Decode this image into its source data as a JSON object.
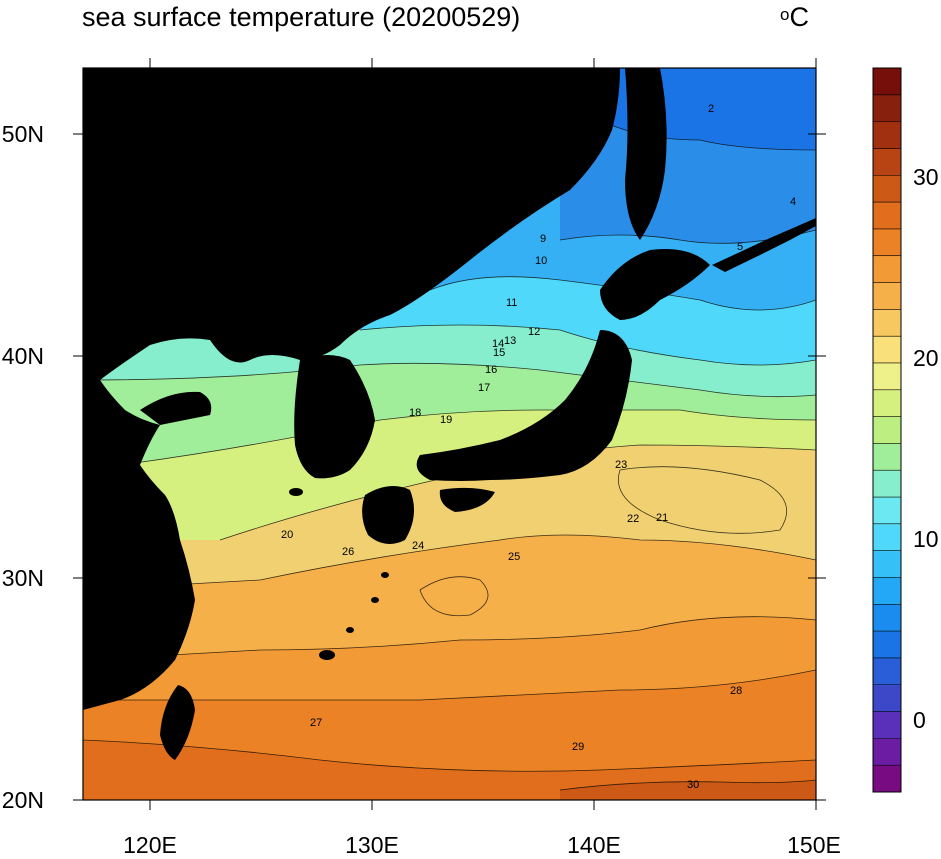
{
  "title": "sea surface temperature (20200529)",
  "units": "°C",
  "map": {
    "lon_range": [
      117,
      150
    ],
    "lat_range": [
      20,
      53
    ],
    "lat_ticks": [
      "50N",
      "40N",
      "30N",
      "20N"
    ],
    "lon_ticks": [
      "120E",
      "130E",
      "140E",
      "150E"
    ],
    "land_color": "#000000"
  },
  "colorbar": {
    "ticks": [
      "30",
      "20",
      "10",
      "0"
    ],
    "range": [
      -5,
      36
    ],
    "colors": [
      "#780a82",
      "#6a1ca2",
      "#5a30b8",
      "#3c48c8",
      "#2a5ed8",
      "#1a74e6",
      "#1a8cef",
      "#22a8f5",
      "#36c0f8",
      "#50d8fa",
      "#6ce8f2",
      "#86eecc",
      "#a0ee9a",
      "#bcee82",
      "#d6f080",
      "#eef08a",
      "#fae07a",
      "#f8c860",
      "#f6b04a",
      "#f29a36",
      "#ec8226",
      "#e06e1c",
      "#cc5a16",
      "#b84414",
      "#a03010",
      "#88200e",
      "#760e0a"
    ]
  },
  "contour_labels": [
    {
      "text": "2"
    },
    {
      "text": "4"
    },
    {
      "text": "5"
    },
    {
      "text": "9"
    },
    {
      "text": "10"
    },
    {
      "text": "11"
    },
    {
      "text": "12"
    },
    {
      "text": "13"
    },
    {
      "text": "14"
    },
    {
      "text": "15"
    },
    {
      "text": "16"
    },
    {
      "text": "17"
    },
    {
      "text": "18"
    },
    {
      "text": "19"
    },
    {
      "text": "20"
    },
    {
      "text": "21"
    },
    {
      "text": "22"
    },
    {
      "text": "23"
    },
    {
      "text": "24"
    },
    {
      "text": "25"
    },
    {
      "text": "26"
    },
    {
      "text": "27"
    },
    {
      "text": "28"
    },
    {
      "text": "29"
    },
    {
      "text": "30"
    }
  ]
}
